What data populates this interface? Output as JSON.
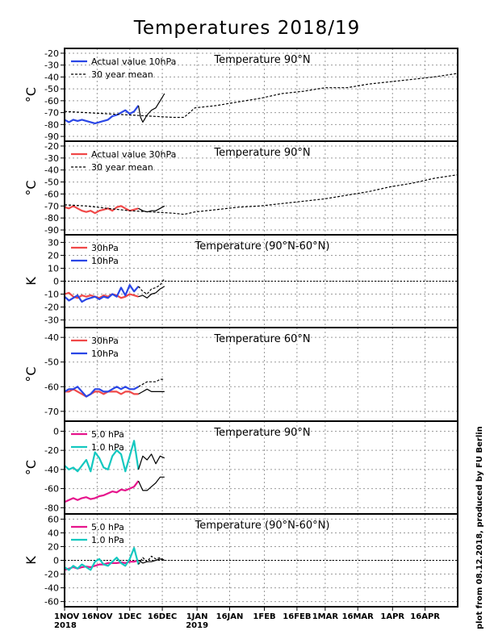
{
  "page": {
    "title": "Temperatures 2018/19",
    "credit": "plot from 08.12.2018, produced by FU Berlin"
  },
  "colors": {
    "actual": "#2a46e6",
    "actual30": "#f04848",
    "p5": "#e6148c",
    "p1": "#14c8c0",
    "mean": "#000000",
    "grid": "#9a9a9a"
  },
  "chart_data": [
    {
      "type": "line",
      "title": "Temperature 90°N",
      "ylabel": "°C",
      "ylim": [
        -92,
        -18
      ],
      "yticks": [
        -20,
        -30,
        -40,
        -50,
        -60,
        -70,
        -80,
        -90
      ],
      "legend": [
        "Actual value 10hPa",
        "30 year mean"
      ],
      "series": [
        {
          "name": "Actual value 10hPa",
          "color": "actual",
          "x": [
            0,
            2,
            4,
            6,
            8,
            10,
            12,
            14,
            16,
            18,
            20,
            22,
            24,
            26,
            28,
            30,
            32,
            34
          ],
          "y": [
            -76,
            -78,
            -76,
            -77,
            -76,
            -77,
            -78,
            -79,
            -78,
            -77,
            -76,
            -73,
            -72,
            -70,
            -68,
            -71,
            -69,
            -64
          ]
        },
        {
          "name": "Actual value 10hPa (extension)",
          "color": "mean",
          "style": "solid",
          "x": [
            34,
            35,
            36,
            37,
            38,
            40,
            42,
            44,
            46
          ],
          "y": [
            -64,
            -74,
            -78,
            -75,
            -72,
            -68,
            -66,
            -60,
            -54
          ]
        },
        {
          "name": "30 year mean",
          "color": "mean",
          "style": "dashed",
          "x": [
            0,
            10,
            20,
            30,
            40,
            50,
            55,
            60,
            70,
            80,
            90,
            100,
            110,
            120,
            130,
            140,
            150,
            160,
            170,
            181
          ],
          "y": [
            -69,
            -70,
            -71,
            -72,
            -73,
            -74,
            -74,
            -66,
            -64,
            -61,
            -58,
            -54,
            -52,
            -49,
            -49,
            -46,
            -44,
            -42,
            -40,
            -37
          ]
        }
      ]
    },
    {
      "type": "line",
      "title": "Temperature 90°N",
      "ylabel": "°C",
      "ylim": [
        -92,
        -18
      ],
      "yticks": [
        -20,
        -30,
        -40,
        -50,
        -60,
        -70,
        -80,
        -90
      ],
      "legend": [
        "Actual value 30hPa",
        "30 year mean"
      ],
      "series": [
        {
          "name": "Actual value 30hPa",
          "color": "actual30",
          "x": [
            0,
            2,
            4,
            6,
            8,
            10,
            12,
            14,
            16,
            18,
            20,
            22,
            24,
            26,
            28,
            30,
            32,
            34
          ],
          "y": [
            -71,
            -72,
            -70,
            -72,
            -74,
            -75,
            -74,
            -76,
            -74,
            -73,
            -72,
            -74,
            -71,
            -70,
            -72,
            -74,
            -73,
            -72
          ]
        },
        {
          "name": "Actual value 30hPa (extension)",
          "color": "mean",
          "style": "solid",
          "x": [
            34,
            36,
            38,
            40,
            42,
            44,
            46
          ],
          "y": [
            -72,
            -74,
            -75,
            -74,
            -74,
            -72,
            -70
          ]
        },
        {
          "name": "30 year mean",
          "color": "mean",
          "style": "dashed",
          "x": [
            0,
            10,
            20,
            30,
            40,
            50,
            55,
            60,
            70,
            80,
            90,
            100,
            110,
            120,
            130,
            140,
            150,
            160,
            170,
            181
          ],
          "y": [
            -69,
            -70,
            -72,
            -74,
            -75,
            -76,
            -77,
            -75,
            -73,
            -71,
            -70,
            -68,
            -66,
            -64,
            -61,
            -58,
            -54,
            -51,
            -47,
            -44
          ]
        }
      ]
    },
    {
      "type": "line",
      "title": "Temperature (90°N-60°N)",
      "ylabel": "K",
      "ylim": [
        -34,
        34
      ],
      "yticks": [
        30,
        20,
        10,
        0,
        -10,
        -20,
        -30
      ],
      "zero_line": true,
      "legend": [
        "30hPa",
        "10hPa"
      ],
      "series": [
        {
          "name": "30hPa",
          "color": "actual30",
          "x": [
            0,
            2,
            4,
            6,
            8,
            10,
            12,
            14,
            16,
            18,
            20,
            22,
            24,
            26,
            28,
            30,
            32,
            34
          ],
          "y": [
            -10,
            -9,
            -12,
            -13,
            -11,
            -12,
            -11,
            -12,
            -13,
            -11,
            -12,
            -10,
            -11,
            -13,
            -12,
            -10,
            -11,
            -12
          ]
        },
        {
          "name": "10hPa",
          "color": "actual",
          "x": [
            0,
            2,
            4,
            6,
            8,
            10,
            12,
            14,
            16,
            18,
            20,
            22,
            24,
            26,
            28,
            30,
            32,
            34
          ],
          "y": [
            -12,
            -15,
            -13,
            -11,
            -16,
            -14,
            -13,
            -12,
            -14,
            -12,
            -13,
            -10,
            -12,
            -5,
            -11,
            -3,
            -8,
            -4
          ]
        },
        {
          "name": "30hPa (extension)",
          "color": "mean",
          "style": "solid",
          "x": [
            34,
            36,
            38,
            40,
            42,
            44,
            46
          ],
          "y": [
            -12,
            -11,
            -13,
            -10,
            -9,
            -6,
            -4
          ]
        },
        {
          "name": "10hPa (extension)",
          "color": "mean",
          "style": "dashed",
          "x": [
            34,
            36,
            38,
            40,
            42,
            44,
            46
          ],
          "y": [
            -4,
            -8,
            -10,
            -6,
            -5,
            -3,
            2
          ]
        }
      ]
    },
    {
      "type": "line",
      "title": "Temperature 60°N",
      "ylabel": "°C",
      "ylim": [
        -73,
        -37
      ],
      "yticks": [
        -40,
        -50,
        -60,
        -70
      ],
      "legend": [
        "30hPa",
        "10hPa"
      ],
      "series": [
        {
          "name": "30hPa",
          "color": "actual30",
          "x": [
            0,
            2,
            4,
            6,
            8,
            10,
            12,
            14,
            16,
            18,
            20,
            22,
            24,
            26,
            28,
            30,
            32,
            34
          ],
          "y": [
            -62,
            -62,
            -61,
            -62,
            -63,
            -64,
            -63,
            -62,
            -62,
            -63,
            -62,
            -62,
            -62,
            -63,
            -62,
            -62,
            -63,
            -63
          ]
        },
        {
          "name": "10hPa",
          "color": "actual",
          "x": [
            0,
            2,
            4,
            6,
            8,
            10,
            12,
            14,
            16,
            18,
            20,
            22,
            24,
            26,
            28,
            30,
            32,
            34
          ],
          "y": [
            -62,
            -61,
            -61,
            -60,
            -62,
            -64,
            -63,
            -61,
            -61,
            -62,
            -62,
            -61,
            -60,
            -61,
            -60,
            -61,
            -61,
            -60
          ]
        },
        {
          "name": "30hPa (extension)",
          "color": "mean",
          "style": "solid",
          "x": [
            34,
            36,
            38,
            40,
            42,
            44,
            46
          ],
          "y": [
            -63,
            -62,
            -61,
            -62,
            -62,
            -62,
            -62
          ]
        },
        {
          "name": "10hPa (extension)",
          "color": "mean",
          "style": "dashed",
          "x": [
            34,
            36,
            38,
            40,
            42,
            44,
            46
          ],
          "y": [
            -60,
            -59,
            -58,
            -58,
            -58,
            -57,
            -57
          ]
        }
      ]
    },
    {
      "type": "line",
      "title": "Temperature 90°N",
      "ylabel": "°C",
      "ylim": [
        -84,
        8
      ],
      "yticks": [
        0,
        -20,
        -40,
        -60,
        -80
      ],
      "legend": [
        "5.0 hPa",
        "1.0 hPa"
      ],
      "series": [
        {
          "name": "5.0 hPa",
          "color": "p5",
          "x": [
            0,
            2,
            4,
            6,
            8,
            10,
            12,
            14,
            16,
            18,
            20,
            22,
            24,
            26,
            28,
            30,
            32,
            34
          ],
          "y": [
            -74,
            -72,
            -70,
            -72,
            -70,
            -69,
            -71,
            -70,
            -68,
            -67,
            -65,
            -63,
            -64,
            -61,
            -62,
            -60,
            -58,
            -52
          ]
        },
        {
          "name": "1.0 hPa",
          "color": "p1",
          "x": [
            0,
            2,
            4,
            6,
            8,
            10,
            12,
            14,
            16,
            18,
            20,
            22,
            24,
            26,
            28,
            30,
            32,
            34
          ],
          "y": [
            -36,
            -40,
            -38,
            -42,
            -36,
            -30,
            -42,
            -22,
            -28,
            -38,
            -40,
            -26,
            -20,
            -24,
            -42,
            -26,
            -10,
            -40
          ]
        },
        {
          "name": "5.0 hPa (extension)",
          "color": "mean",
          "style": "solid",
          "x": [
            34,
            36,
            38,
            40,
            42,
            44,
            46
          ],
          "y": [
            -52,
            -62,
            -62,
            -58,
            -54,
            -48,
            -48
          ]
        },
        {
          "name": "1.0 hPa (extension)",
          "color": "mean",
          "style": "solid",
          "x": [
            34,
            36,
            38,
            40,
            42,
            44,
            46
          ],
          "y": [
            -40,
            -26,
            -30,
            -24,
            -34,
            -26,
            -28
          ]
        }
      ]
    },
    {
      "type": "line",
      "title": "Temperature (90°N-60°N)",
      "ylabel": "K",
      "ylim": [
        -64,
        64
      ],
      "yticks": [
        60,
        40,
        20,
        0,
        -20,
        -40,
        -60
      ],
      "zero_line": true,
      "legend": [
        "5.0 hPa",
        "1.0 hPa"
      ],
      "series": [
        {
          "name": "5.0 hPa",
          "color": "p5",
          "x": [
            0,
            2,
            4,
            6,
            8,
            10,
            12,
            14,
            16,
            18,
            20,
            22,
            24,
            26,
            28,
            30,
            32,
            34
          ],
          "y": [
            -14,
            -12,
            -10,
            -12,
            -10,
            -9,
            -10,
            -8,
            -6,
            -6,
            -4,
            -4,
            -4,
            -3,
            -4,
            -2,
            -2,
            0
          ]
        },
        {
          "name": "1.0 hPa",
          "color": "p1",
          "x": [
            0,
            2,
            4,
            6,
            8,
            10,
            12,
            14,
            16,
            18,
            20,
            22,
            24,
            26,
            28,
            30,
            32,
            34
          ],
          "y": [
            -10,
            -14,
            -8,
            -12,
            -6,
            -10,
            -14,
            -2,
            2,
            -6,
            -8,
            -2,
            4,
            -4,
            -8,
            2,
            18,
            -6
          ]
        },
        {
          "name": "5.0 hPa (extension)",
          "color": "mean",
          "style": "solid",
          "x": [
            34,
            36,
            38,
            40,
            42,
            44,
            46
          ],
          "y": [
            0,
            -4,
            -2,
            -2,
            0,
            2,
            0
          ]
        },
        {
          "name": "1.0 hPa (extension)",
          "color": "mean",
          "style": "dashed",
          "x": [
            34,
            36,
            38,
            40,
            42,
            44,
            46
          ],
          "y": [
            -6,
            4,
            -2,
            6,
            2,
            4,
            0
          ]
        }
      ]
    }
  ],
  "xaxis": {
    "xlim": [
      0,
      181
    ],
    "ticks": [
      {
        "x": 0,
        "label": "1NOV",
        "year": "2018"
      },
      {
        "x": 15,
        "label": "16NOV"
      },
      {
        "x": 30,
        "label": "1DEC"
      },
      {
        "x": 45,
        "label": "16DEC"
      },
      {
        "x": 61,
        "label": "1JAN",
        "year": "2019"
      },
      {
        "x": 76,
        "label": "16JAN"
      },
      {
        "x": 92,
        "label": "1FEB"
      },
      {
        "x": 107,
        "label": "16FEB"
      },
      {
        "x": 120,
        "label": "1MAR"
      },
      {
        "x": 135,
        "label": "16MAR"
      },
      {
        "x": 151,
        "label": "1APR"
      },
      {
        "x": 166,
        "label": "16APR"
      }
    ]
  }
}
